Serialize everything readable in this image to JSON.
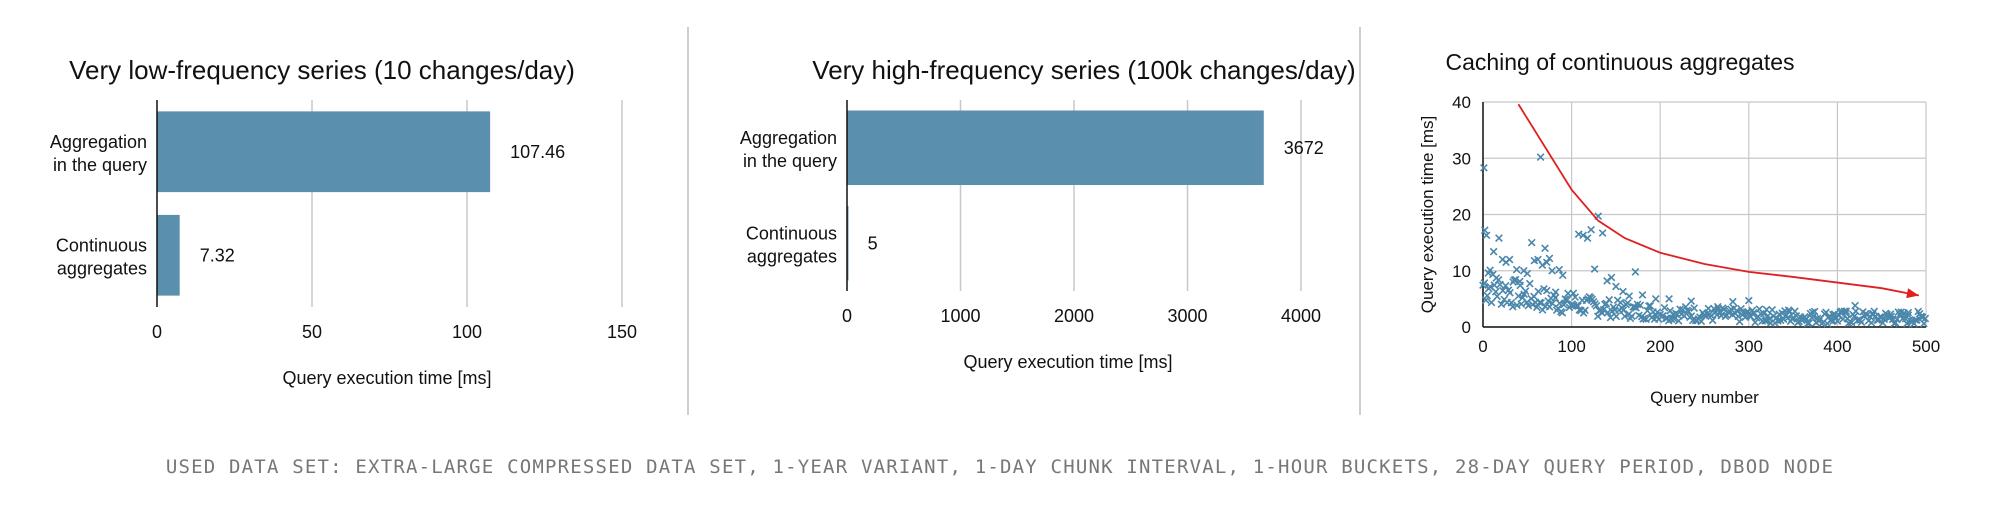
{
  "colors": {
    "bar": "#5a8fad",
    "marker": "#4a87ab",
    "trend": "#e02020",
    "grid": "#c8c8c8",
    "divider": "#bdbdbd",
    "caption": "#777777"
  },
  "caption": "USED DATA SET: EXTRA-LARGE COMPRESSED DATA SET, 1-YEAR VARIANT, 1-DAY CHUNK INTERVAL, 1-HOUR BUCKETS, 28-DAY QUERY PERIOD, DBOD NODE",
  "chart_data": [
    {
      "type": "bar",
      "orientation": "horizontal",
      "title": "Very low-frequency series (10 changes/day)",
      "categories": [
        "Aggregation\nin the query",
        "Continuous\naggregates"
      ],
      "values": [
        107.46,
        7.32
      ],
      "value_labels": [
        "107.46",
        "7.32"
      ],
      "xlabel": "Query execution time [ms]",
      "ylabel": "",
      "xlim": [
        0,
        150
      ],
      "xticks": [
        0,
        50,
        100,
        150
      ],
      "grid": true
    },
    {
      "type": "bar",
      "orientation": "horizontal",
      "title": "Very high-frequency series (100k changes/day)",
      "categories": [
        "Aggregation\nin the query",
        "Continuous\naggregates"
      ],
      "values": [
        3672,
        5
      ],
      "value_labels": [
        "3672",
        "5"
      ],
      "xlabel": "Query execution time [ms]",
      "ylabel": "",
      "xlim": [
        0,
        4000
      ],
      "xticks": [
        0,
        1000,
        2000,
        3000,
        4000
      ],
      "grid": true
    },
    {
      "type": "scatter",
      "title": "Caching of continuous aggregates",
      "xlabel": "Query number",
      "ylabel": "Query execution time [ms]",
      "xlim": [
        0,
        500
      ],
      "ylim": [
        0,
        40
      ],
      "xticks": [
        0,
        100,
        200,
        300,
        400,
        500
      ],
      "yticks": [
        0,
        10,
        20,
        30,
        40
      ],
      "grid": true,
      "marker": "x",
      "highlights": [
        [
          1,
          28.3
        ],
        [
          2,
          17.2
        ],
        [
          4,
          16.3
        ],
        [
          6,
          9.6
        ],
        [
          8,
          10.1
        ],
        [
          12,
          13.4
        ],
        [
          15,
          8.7
        ],
        [
          18,
          15.8
        ],
        [
          22,
          12
        ],
        [
          26,
          11.5
        ],
        [
          30,
          12
        ],
        [
          34,
          8
        ],
        [
          38,
          10.2
        ],
        [
          42,
          7.4
        ],
        [
          46,
          10
        ],
        [
          50,
          9.5
        ],
        [
          55,
          15
        ],
        [
          58,
          11.8
        ],
        [
          62,
          12
        ],
        [
          65,
          30.2
        ],
        [
          67,
          11
        ],
        [
          70,
          14
        ],
        [
          72,
          11.5
        ],
        [
          75,
          12.2
        ],
        [
          78,
          10
        ],
        [
          82,
          6.2
        ],
        [
          86,
          10.2
        ],
        [
          90,
          9.2
        ],
        [
          95,
          4.8
        ],
        [
          102,
          6
        ],
        [
          108,
          16.5
        ],
        [
          113,
          16.3
        ],
        [
          118,
          15.8
        ],
        [
          122,
          17.3
        ],
        [
          126,
          10.3
        ],
        [
          130,
          19.7
        ],
        [
          135,
          16.7
        ],
        [
          140,
          8.2
        ],
        [
          145,
          8.8
        ],
        [
          150,
          7.2
        ],
        [
          158,
          6.3
        ],
        [
          165,
          5.5
        ],
        [
          172,
          9.8
        ],
        [
          180,
          5.7
        ],
        [
          195,
          5
        ],
        [
          210,
          5
        ],
        [
          235,
          4.6
        ],
        [
          265,
          3.6
        ],
        [
          282,
          4.5
        ],
        [
          300,
          4.7
        ],
        [
          320,
          3.1
        ],
        [
          345,
          3
        ],
        [
          372,
          2.6
        ],
        [
          395,
          2.2
        ],
        [
          410,
          2.8
        ],
        [
          420,
          3.8
        ],
        [
          440,
          2.4
        ],
        [
          460,
          2.3
        ],
        [
          480,
          2.1
        ],
        [
          495,
          1.8
        ]
      ],
      "bulk_trend": {
        "start": 7.5,
        "end": 1.5
      },
      "trend_arrow": [
        [
          40,
          39.6
        ],
        [
          70,
          32
        ],
        [
          100,
          24.4
        ],
        [
          130,
          18.9
        ],
        [
          160,
          15.8
        ],
        [
          200,
          13.2
        ],
        [
          250,
          11.2
        ],
        [
          300,
          9.8
        ],
        [
          350,
          8.9
        ],
        [
          400,
          7.9
        ],
        [
          450,
          6.9
        ],
        [
          492,
          5.6
        ]
      ]
    }
  ]
}
